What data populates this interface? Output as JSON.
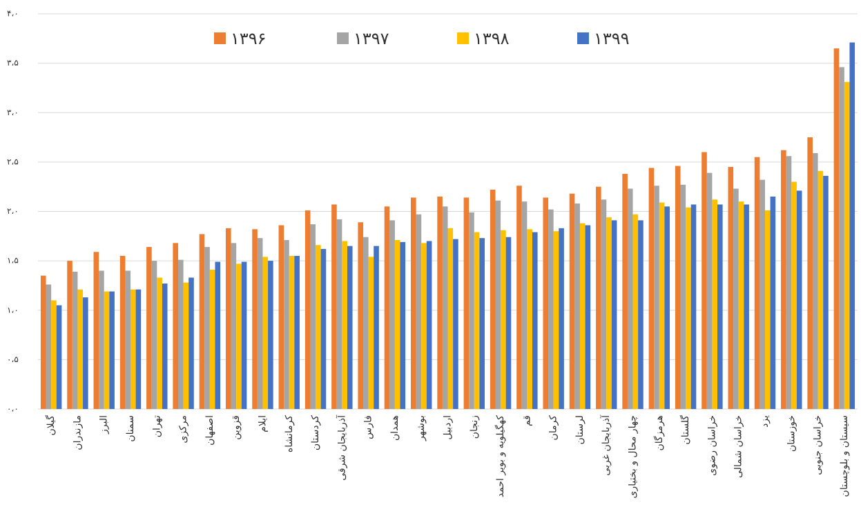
{
  "chart_data": {
    "type": "bar",
    "categories": [
      "گیلان",
      "مازندران",
      "البرز",
      "سمنان",
      "تهران",
      "مرکزی",
      "اصفهان",
      "قزوین",
      "ایلام",
      "کرمانشاه",
      "کردستان",
      "آذربایجان شرقی",
      "فارس",
      "همدان",
      "بوشهر",
      "اردبیل",
      "زنجان",
      "کهگیلویه و بویر احمد",
      "قم",
      "کرمان",
      "لرستان",
      "آذربایجان غربی",
      "چهار محال و بختیاری",
      "هرمزگان",
      "گلستان",
      "خراسان رضوی",
      "خراسان شمالی",
      "یزد",
      "خوزستان",
      "خراسان جنوبی",
      "سیستان و بلوچستان"
    ],
    "series": [
      {
        "name": "۱۳۹۶",
        "color": "#ed7d31",
        "values": [
          1.35,
          1.5,
          1.59,
          1.55,
          1.64,
          1.68,
          1.77,
          1.83,
          1.82,
          1.86,
          2.01,
          2.07,
          1.89,
          2.05,
          2.14,
          2.15,
          2.14,
          2.22,
          2.26,
          2.14,
          2.18,
          2.25,
          2.38,
          2.44,
          2.46,
          2.6,
          2.45,
          2.55,
          2.62,
          2.75,
          3.65
        ]
      },
      {
        "name": "۱۳۹۷",
        "color": "#a5a5a5",
        "values": [
          1.26,
          1.39,
          1.4,
          1.4,
          1.5,
          1.51,
          1.64,
          1.68,
          1.73,
          1.71,
          1.87,
          1.92,
          1.74,
          1.91,
          1.97,
          2.05,
          1.99,
          2.11,
          2.1,
          2.02,
          2.08,
          2.12,
          2.23,
          2.26,
          2.27,
          2.39,
          2.23,
          2.32,
          2.56,
          2.59,
          3.46
        ]
      },
      {
        "name": "۱۳۹۸",
        "color": "#ffc000",
        "values": [
          1.1,
          1.21,
          1.19,
          1.21,
          1.33,
          1.28,
          1.41,
          1.47,
          1.54,
          1.55,
          1.66,
          1.7,
          1.54,
          1.71,
          1.68,
          1.83,
          1.79,
          1.81,
          1.82,
          1.8,
          1.88,
          1.94,
          1.97,
          2.09,
          2.04,
          2.12,
          2.1,
          2.01,
          2.3,
          2.41,
          3.31
        ]
      },
      {
        "name": "۱۳۹۹",
        "color": "#4472c4",
        "values": [
          1.05,
          1.13,
          1.19,
          1.21,
          1.27,
          1.33,
          1.49,
          1.49,
          1.5,
          1.55,
          1.62,
          1.65,
          1.65,
          1.69,
          1.7,
          1.72,
          1.73,
          1.74,
          1.79,
          1.83,
          1.86,
          1.91,
          1.91,
          2.05,
          2.07,
          2.07,
          2.07,
          2.15,
          2.21,
          2.36,
          3.71
        ]
      }
    ],
    "ylim": [
      0,
      4
    ],
    "yticks": [
      {
        "value": 0,
        "label": "۰،۰"
      },
      {
        "value": 0.5,
        "label": "۰،۵"
      },
      {
        "value": 1,
        "label": "۱،۰"
      },
      {
        "value": 1.5,
        "label": "۱،۵"
      },
      {
        "value": 2,
        "label": "۲،۰"
      },
      {
        "value": 2.5,
        "label": "۲،۵"
      },
      {
        "value": 3,
        "label": "۳،۰"
      },
      {
        "value": 3.5,
        "label": "۳،۵"
      },
      {
        "value": 4,
        "label": "۴،۰"
      }
    ],
    "grid": true,
    "legend": "top"
  }
}
